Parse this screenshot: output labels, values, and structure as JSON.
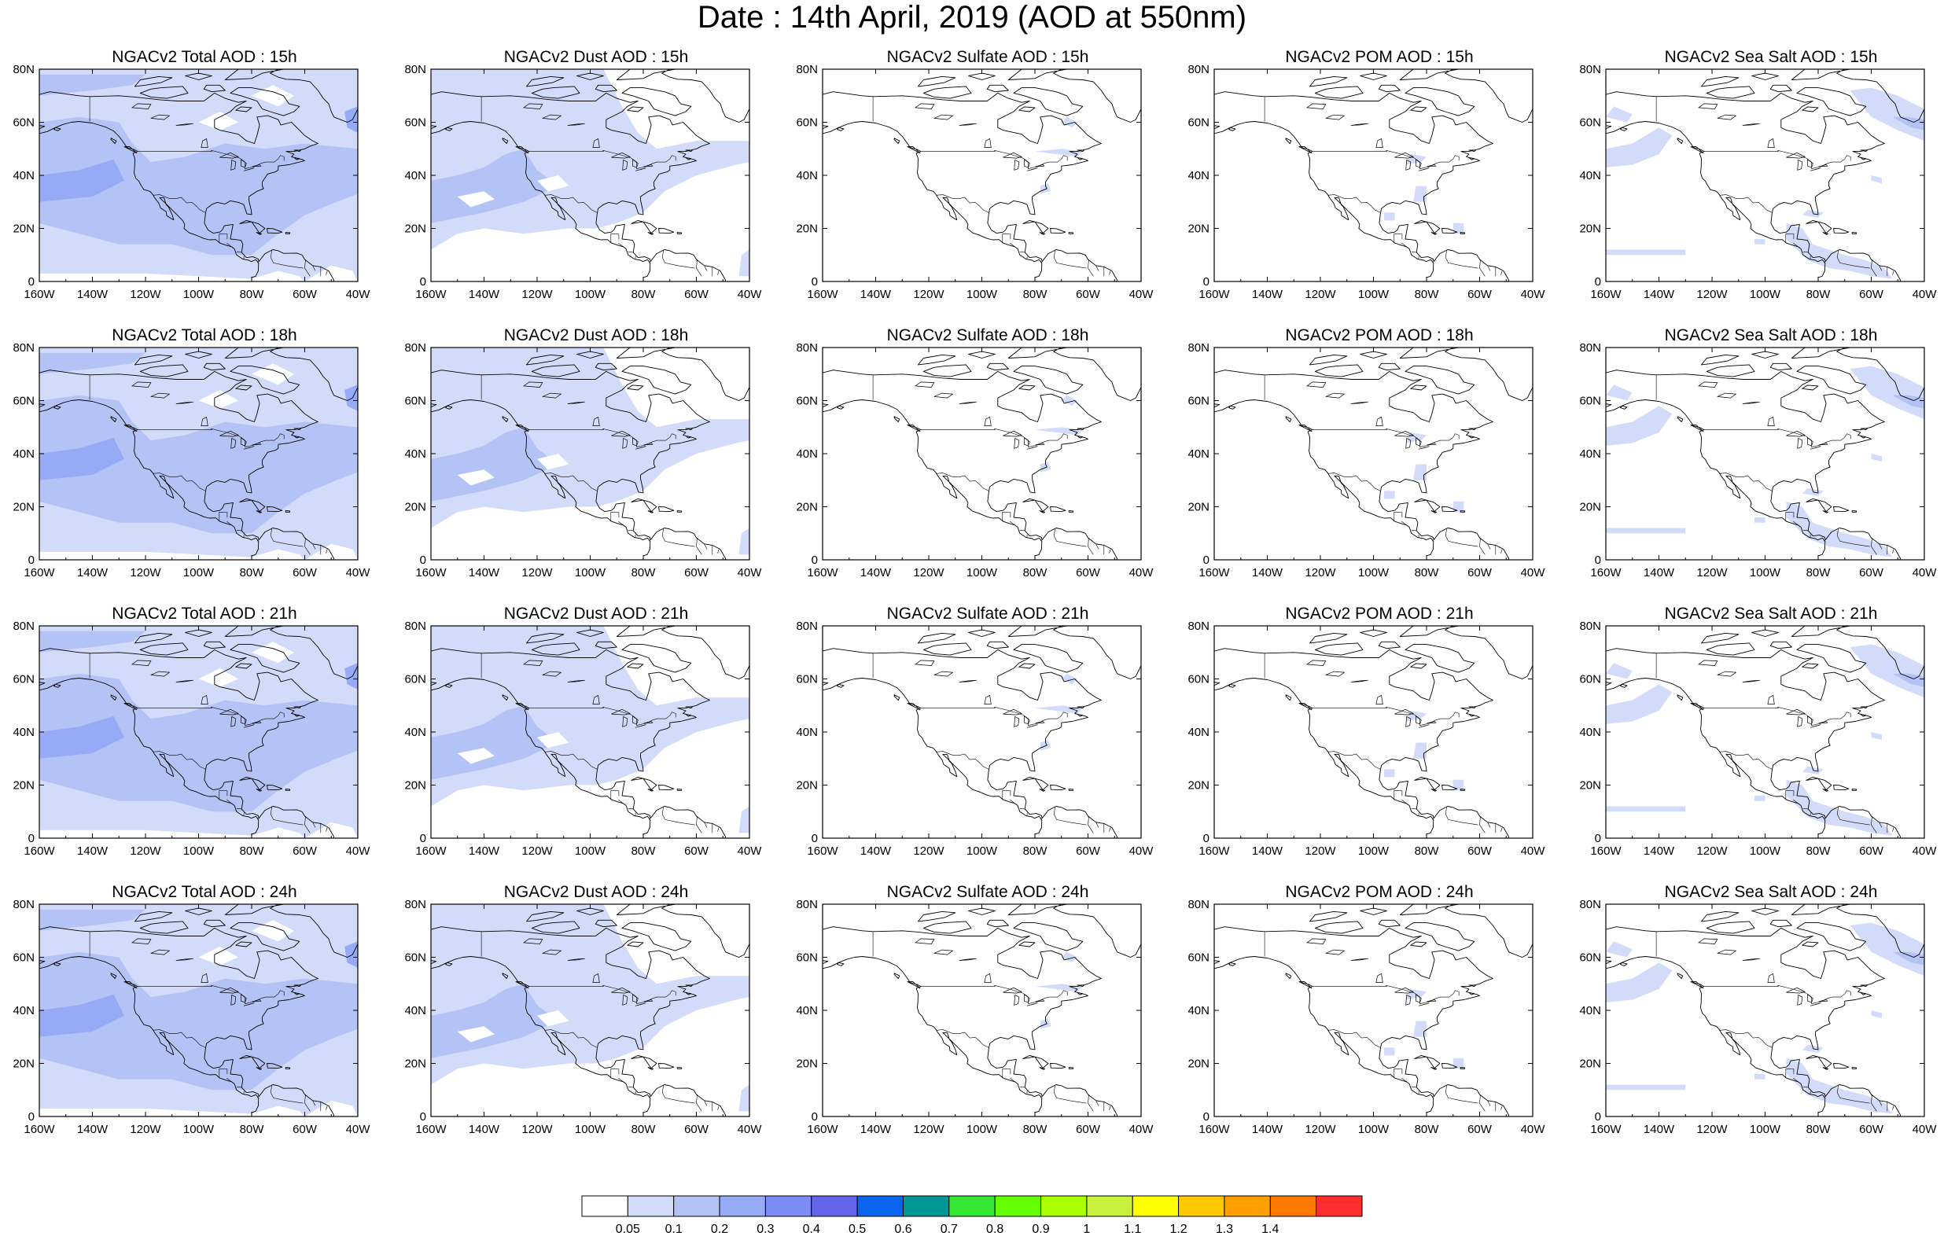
{
  "title": "Date : 14th April, 2019 (AOD at 550nm)",
  "chart_data": {
    "type": "heatmap",
    "grid_rows": 4,
    "grid_cols": 5,
    "x_range": [
      -160,
      -40
    ],
    "y_range": [
      0,
      80
    ],
    "x_ticks": [
      "160W",
      "140W",
      "120W",
      "100W",
      "80W",
      "60W",
      "40W"
    ],
    "y_ticks": [
      "0",
      "20N",
      "40N",
      "60N",
      "80N"
    ],
    "panels": [
      {
        "title": "NGACv2 Total AOD : 15h",
        "field": "total",
        "hour": "15h"
      },
      {
        "title": "NGACv2 Dust AOD : 15h",
        "field": "dust",
        "hour": "15h"
      },
      {
        "title": "NGACv2 Sulfate AOD : 15h",
        "field": "sulfate",
        "hour": "15h"
      },
      {
        "title": "NGACv2 POM AOD : 15h",
        "field": "pom",
        "hour": "15h"
      },
      {
        "title": "NGACv2 Sea Salt AOD : 15h",
        "field": "seasalt",
        "hour": "15h"
      },
      {
        "title": "NGACv2 Total AOD : 18h",
        "field": "total",
        "hour": "18h"
      },
      {
        "title": "NGACv2 Dust AOD : 18h",
        "field": "dust",
        "hour": "18h"
      },
      {
        "title": "NGACv2 Sulfate AOD : 18h",
        "field": "sulfate",
        "hour": "18h"
      },
      {
        "title": "NGACv2 POM AOD : 18h",
        "field": "pom",
        "hour": "18h"
      },
      {
        "title": "NGACv2 Sea Salt AOD : 18h",
        "field": "seasalt",
        "hour": "18h"
      },
      {
        "title": "NGACv2 Total AOD : 21h",
        "field": "total",
        "hour": "21h"
      },
      {
        "title": "NGACv2 Dust AOD : 21h",
        "field": "dust",
        "hour": "21h"
      },
      {
        "title": "NGACv2 Sulfate AOD : 21h",
        "field": "sulfate",
        "hour": "21h"
      },
      {
        "title": "NGACv2 POM AOD : 21h",
        "field": "pom",
        "hour": "21h"
      },
      {
        "title": "NGACv2 Sea Salt AOD : 21h",
        "field": "seasalt",
        "hour": "21h"
      },
      {
        "title": "NGACv2 Total AOD : 24h",
        "field": "total",
        "hour": "24h"
      },
      {
        "title": "NGACv2 Dust AOD : 24h",
        "field": "dust",
        "hour": "24h"
      },
      {
        "title": "NGACv2 Sulfate AOD : 24h",
        "field": "sulfate",
        "hour": "24h"
      },
      {
        "title": "NGACv2 POM AOD : 24h",
        "field": "pom",
        "hour": "24h"
      },
      {
        "title": "NGACv2 Sea Salt  AOD : 24h",
        "field": "seasalt",
        "hour": "24h"
      }
    ],
    "colorbar": {
      "levels": [
        "0.05",
        "0.1",
        "0.2",
        "0.3",
        "0.4",
        "0.5",
        "0.6",
        "0.7",
        "0.8",
        "0.9",
        "1",
        "1.1",
        "1.2",
        "1.3",
        "1.4"
      ],
      "colors": [
        "#ffffff",
        "#d2dcfa",
        "#b4c3f5",
        "#96aaf5",
        "#7d8cf5",
        "#6464eb",
        "#0a64f0",
        "#009696",
        "#32e632",
        "#64ff00",
        "#aaff00",
        "#c8f03c",
        "#ffff00",
        "#ffc800",
        "#ffa000",
        "#ff7800",
        "#ff2d2d"
      ]
    },
    "field_colors": {
      "level1": "#d2dcfa",
      "level2": "#b4c3f5",
      "level3": "#96aaf5"
    },
    "coastline_color": "#000000"
  }
}
